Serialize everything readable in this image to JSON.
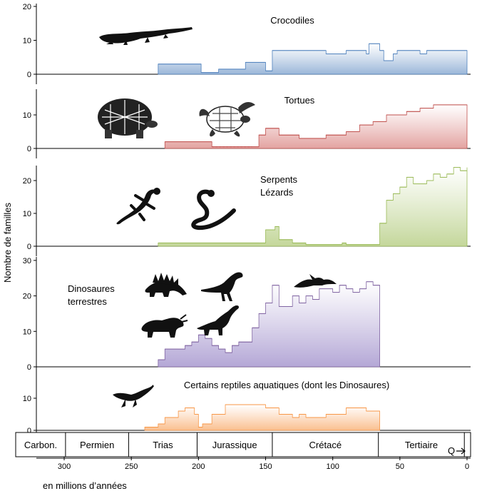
{
  "figure": {
    "ylabel": "Nombre de familles",
    "xlabel": "en millions d’années"
  },
  "time_axis": {
    "range": [
      335,
      0
    ],
    "ticks": [
      300,
      250,
      200,
      150,
      100,
      50,
      0
    ],
    "periods": [
      {
        "name": "Carbon.",
        "start": 335,
        "end": 299
      },
      {
        "name": "Permien",
        "start": 299,
        "end": 252
      },
      {
        "name": "Trias",
        "start": 252,
        "end": 201
      },
      {
        "name": "Jurassique",
        "start": 201,
        "end": 145
      },
      {
        "name": "Crétacé",
        "start": 145,
        "end": 66
      },
      {
        "name": "Tertiaire",
        "start": 66,
        "end": 2
      },
      {
        "name": "Q",
        "start": 2,
        "end": 0
      }
    ]
  },
  "silhouettes": {
    "crocodile": "crocodile-silhouette",
    "tortoise": "tortoise-silhouette",
    "sea_turtle": "sea-turtle-silhouette",
    "lizard": "lizard-silhouette",
    "snake": "snake-silhouette",
    "stegosaurus": "stegosaurus-silhouette",
    "theropod": "theropod-silhouette",
    "pterosaur": "pterosaur-silhouette",
    "triceratops": "triceratops-silhouette",
    "sauropod": "sauropod-silhouette",
    "plesiosaur": "plesiosaur-silhouette"
  },
  "chart_data": [
    {
      "type": "area",
      "title": "Crocodiles",
      "ylabel": "Nombre de familles",
      "ylim": [
        0,
        20
      ],
      "yticks": [
        0,
        10,
        20
      ],
      "color": "#9bb7d9",
      "edge": "#4f81bd",
      "x": [
        230,
        200,
        198,
        185,
        165,
        150,
        145,
        105,
        90,
        75,
        73,
        65,
        62,
        55,
        52,
        35,
        30,
        0
      ],
      "values": [
        3,
        3,
        0.5,
        1.5,
        3.5,
        1,
        7,
        6,
        7,
        6,
        9,
        7,
        4,
        6,
        7,
        6,
        7,
        6
      ]
    },
    {
      "type": "area",
      "title": "Tortues",
      "ylabel": "Nombre de familles",
      "ylim": [
        0,
        15
      ],
      "yticks": [
        0,
        10
      ],
      "color": "#e3a3a1",
      "edge": "#c0504d",
      "x": [
        225,
        190,
        160,
        155,
        150,
        140,
        125,
        105,
        90,
        80,
        70,
        60,
        45,
        35,
        25,
        0
      ],
      "values": [
        2,
        0.5,
        0.5,
        4,
        6,
        4,
        3,
        4,
        5,
        7,
        8,
        10,
        11,
        12,
        13,
        12
      ],
      "dashed_between": [
        190,
        160
      ]
    },
    {
      "type": "area",
      "title": "Serpents\nLézards",
      "ylabel": "Nombre de familles",
      "ylim": [
        0,
        25
      ],
      "yticks": [
        0,
        10,
        20
      ],
      "color": "#c4d79b",
      "edge": "#9bbb59",
      "x": [
        230,
        155,
        150,
        143,
        140,
        130,
        120,
        100,
        93,
        90,
        70,
        65,
        60,
        55,
        50,
        45,
        40,
        35,
        30,
        25,
        20,
        15,
        10,
        5,
        0
      ],
      "values": [
        1,
        1,
        5,
        6,
        2,
        1,
        0.5,
        0.5,
        1,
        0.5,
        0.5,
        7,
        14,
        16,
        18,
        21,
        19,
        19,
        20,
        22,
        21,
        22,
        24,
        23,
        24
      ],
      "labels": [
        "Serpents",
        "Lézards"
      ]
    },
    {
      "type": "area",
      "title": "Dinosaures\nterrestres",
      "ylabel": "Nombre de familles",
      "ylim": [
        0,
        30
      ],
      "yticks": [
        0,
        10,
        20,
        30
      ],
      "color": "#b4a7d6",
      "edge": "#8064a2",
      "x": [
        230,
        225,
        215,
        210,
        205,
        200,
        195,
        190,
        185,
        180,
        175,
        170,
        160,
        155,
        150,
        145,
        140,
        130,
        125,
        120,
        115,
        110,
        100,
        95,
        90,
        85,
        80,
        75,
        70,
        65
      ],
      "values": [
        2,
        5,
        5,
        6,
        7,
        9,
        8,
        6,
        5,
        4,
        6,
        7,
        11,
        15,
        18,
        23,
        17,
        20,
        18,
        20,
        19,
        22,
        21,
        23,
        22,
        21,
        22,
        24,
        23,
        22
      ],
      "labels": [
        "Dinosaures",
        "terrestres"
      ]
    },
    {
      "type": "area",
      "title": "Certains reptiles aquatiques (dont les Dinosaures)",
      "ylabel": "Nombre de familles",
      "ylim": [
        0,
        15
      ],
      "yticks": [
        0,
        10
      ],
      "color": "#fabf8f",
      "edge": "#f79646",
      "x": [
        240,
        230,
        225,
        215,
        210,
        203,
        200,
        197,
        190,
        180,
        150,
        140,
        130,
        125,
        120,
        105,
        90,
        75,
        65
      ],
      "values": [
        1,
        2,
        4,
        6,
        7,
        5,
        1,
        2,
        5,
        8,
        7,
        5,
        4,
        5,
        4,
        5,
        7,
        6,
        6
      ]
    }
  ]
}
